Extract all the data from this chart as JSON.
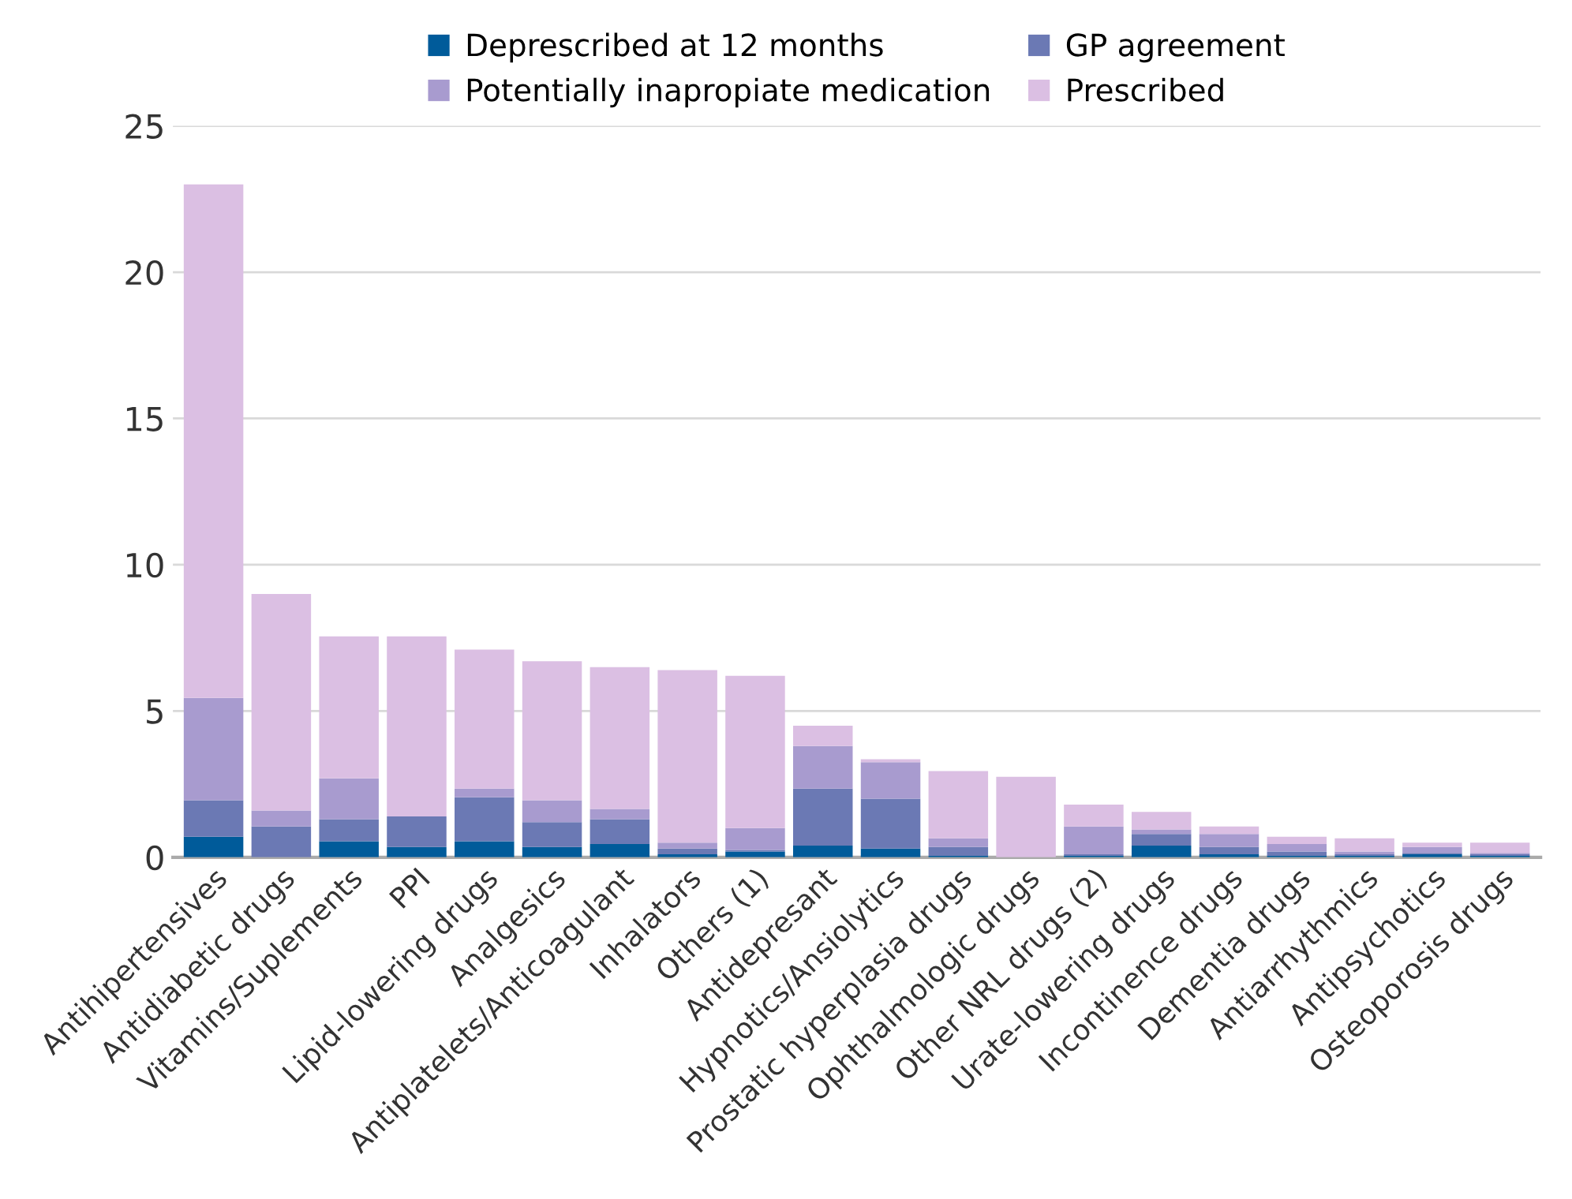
{
  "chart_data": {
    "type": "bar",
    "stacked": true,
    "categories": [
      "Antihipertensives",
      "Antidiabetic drugs",
      "Vitamins/Suplements",
      "PPI",
      "Lipid-lowering drugs",
      "Analgesics",
      "Antiplatelets/Anticoagulant",
      "Inhalators",
      "Others (1)",
      "Antidepresant",
      "Hypnotics/Ansiolytics",
      "Prostatic hyperplasia drugs",
      "Ophthalmologic drugs",
      "Other NRL drugs (2)",
      "Urate-lowering drugs",
      "Incontinence drugs",
      "Dementia drugs",
      "Antiarrhythmics",
      "Antipsychotics",
      "Osteoporosis drugs"
    ],
    "series": [
      {
        "name": "Deprescribed at 12 months",
        "color": "#005b9a",
        "values": [
          0.7,
          0,
          0.55,
          0.35,
          0.55,
          0.35,
          0.45,
          0.1,
          0.2,
          0.4,
          0.3,
          0.05,
          0,
          0.05,
          0.4,
          0.1,
          0.05,
          0.05,
          0.1,
          0.05
        ]
      },
      {
        "name": "GP agreement",
        "color": "#6b79b4",
        "values": [
          1.25,
          1.05,
          0.75,
          1.05,
          1.5,
          0.85,
          0.85,
          0.2,
          0.05,
          1.95,
          1.7,
          0.3,
          0,
          0.05,
          0.4,
          0.25,
          0.15,
          0.05,
          0.05,
          0.05
        ]
      },
      {
        "name": "Potentially inapropiate medication",
        "color": "#a89bcf",
        "values": [
          3.5,
          0.55,
          1.4,
          0,
          0.3,
          0.75,
          0.35,
          0.2,
          0.75,
          1.45,
          1.25,
          0.3,
          0,
          0.95,
          0.15,
          0.45,
          0.25,
          0.1,
          0.2,
          0.05
        ]
      },
      {
        "name": "Prescribed",
        "color": "#dbbfe3",
        "values": [
          17.55,
          7.4,
          4.85,
          6.15,
          4.75,
          4.75,
          4.85,
          5.9,
          5.2,
          0.7,
          0.1,
          2.3,
          2.75,
          0.75,
          0.6,
          0.25,
          0.25,
          0.45,
          0.15,
          0.35
        ]
      }
    ],
    "ylim": [
      0,
      25
    ],
    "yticks": [
      0,
      5,
      10,
      15,
      20,
      25
    ],
    "grid": "y",
    "legend": "top"
  }
}
